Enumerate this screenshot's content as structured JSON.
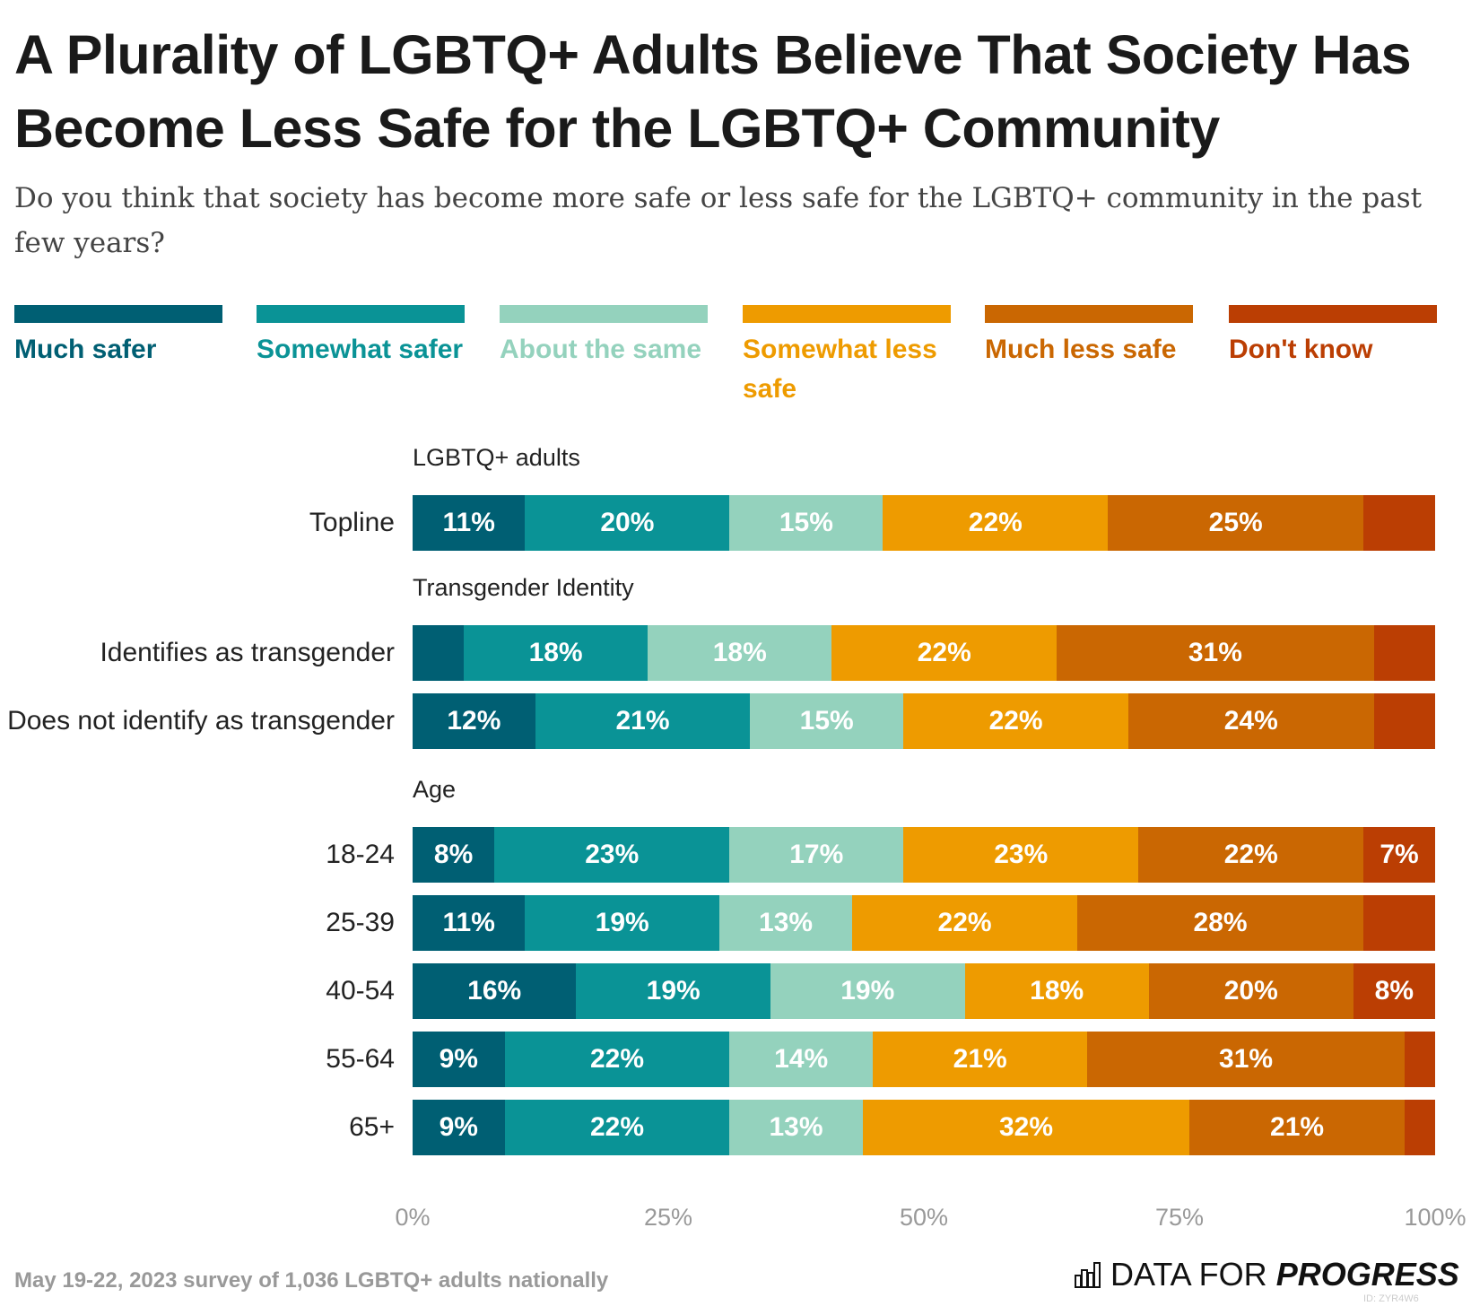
{
  "chart_data": {
    "type": "bar",
    "orientation": "horizontal-stacked",
    "title": "A Plurality of LGBTQ+ Adults Believe That Society Has Become Less Safe for the LGBTQ+ Community",
    "subtitle": "Do you think that society has become more safe or less safe for the LGBTQ+ community in the past few years?",
    "legend": [
      {
        "name": "Much safer",
        "color": "#005f73"
      },
      {
        "name": "Somewhat safer",
        "color": "#0a9396"
      },
      {
        "name": "About the same",
        "color": "#94d2bd"
      },
      {
        "name": "Somewhat less safe",
        "color": "#ee9b00"
      },
      {
        "name": "Much less safe",
        "color": "#ca6702"
      },
      {
        "name": "Don't know",
        "color": "#bb3e03"
      }
    ],
    "groups": [
      {
        "label": "LGBTQ+ adults",
        "rows": [
          {
            "label": "Topline",
            "values": [
              11,
              20,
              15,
              22,
              25,
              7
            ],
            "labels": [
              "11%",
              "20%",
              "15%",
              "22%",
              "25%",
              ""
            ]
          }
        ]
      },
      {
        "label": "Transgender Identity",
        "rows": [
          {
            "label": "Identifies as transgender",
            "values": [
              5,
              18,
              18,
              22,
              31,
              6
            ],
            "labels": [
              "",
              "18%",
              "18%",
              "22%",
              "31%",
              ""
            ]
          },
          {
            "label": "Does not identify as transgender",
            "values": [
              12,
              21,
              15,
              22,
              24,
              6
            ],
            "labels": [
              "12%",
              "21%",
              "15%",
              "22%",
              "24%",
              ""
            ]
          }
        ]
      },
      {
        "label": "Age",
        "rows": [
          {
            "label": "18-24",
            "values": [
              8,
              23,
              17,
              23,
              22,
              7
            ],
            "labels": [
              "8%",
              "23%",
              "17%",
              "23%",
              "22%",
              "7%"
            ]
          },
          {
            "label": "25-39",
            "values": [
              11,
              19,
              13,
              22,
              28,
              7
            ],
            "labels": [
              "11%",
              "19%",
              "13%",
              "22%",
              "28%",
              ""
            ]
          },
          {
            "label": "40-54",
            "values": [
              16,
              19,
              19,
              18,
              20,
              8
            ],
            "labels": [
              "16%",
              "19%",
              "19%",
              "18%",
              "20%",
              "8%"
            ]
          },
          {
            "label": "55-64",
            "values": [
              9,
              22,
              14,
              21,
              31,
              3
            ],
            "labels": [
              "9%",
              "22%",
              "14%",
              "21%",
              "31%",
              ""
            ]
          },
          {
            "label": "65+",
            "values": [
              9,
              22,
              13,
              32,
              21,
              3
            ],
            "labels": [
              "9%",
              "22%",
              "13%",
              "32%",
              "21%",
              ""
            ]
          }
        ]
      }
    ],
    "xticks": [
      "0%",
      "25%",
      "50%",
      "75%",
      "100%"
    ],
    "xlim": [
      0,
      100
    ],
    "grid": false,
    "legend_position": "top"
  },
  "footer": {
    "note": "May 19-22, 2023 survey of 1,036 LGBTQ+ adults nationally",
    "logo_light": "DATA FOR",
    "logo_bold": "PROGRESS",
    "id": "ID: ZYR4W6"
  }
}
